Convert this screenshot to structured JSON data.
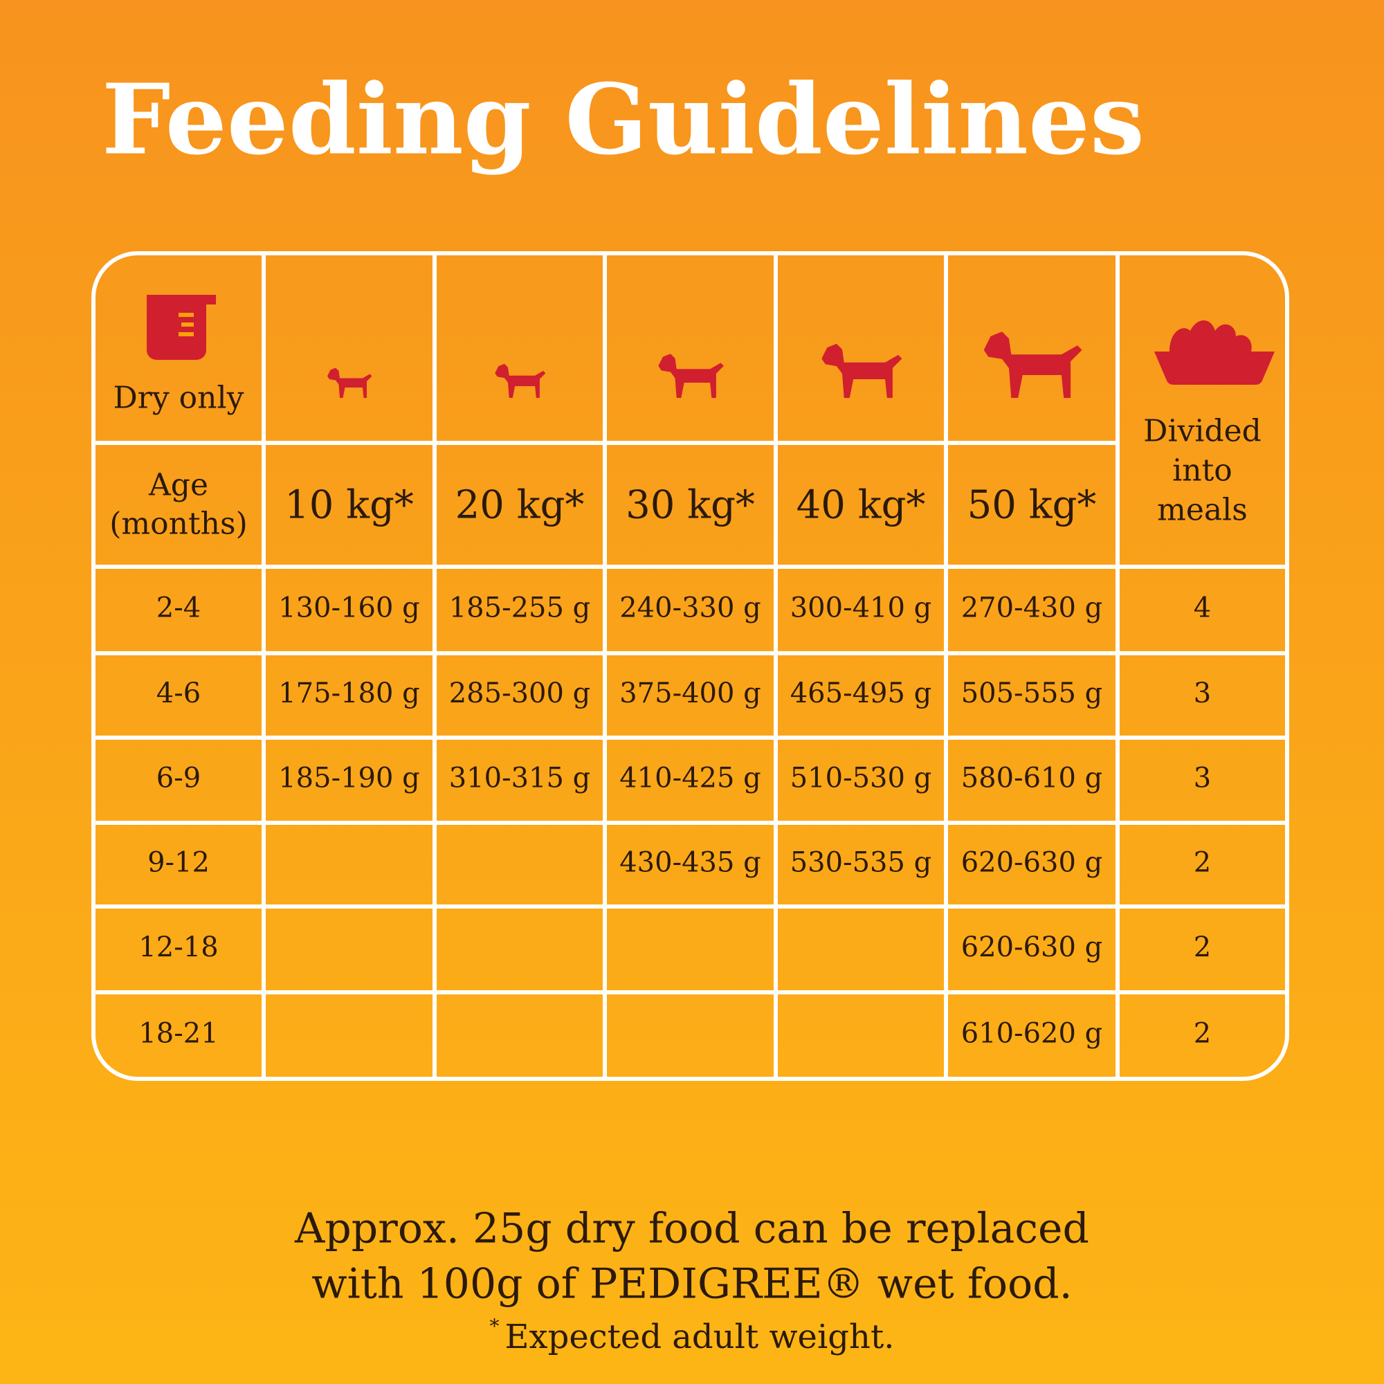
{
  "title": "Feeding Guidelines",
  "table": {
    "icon_label": "Dry only",
    "age_label": [
      "Age",
      "(months)"
    ],
    "weights": [
      "10 kg*",
      "20 kg*",
      "30 kg*",
      "40 kg*",
      "50 kg*"
    ],
    "meals_label": [
      "Divided",
      "into",
      "meals"
    ],
    "rows": [
      [
        "2-4",
        "130-160 g",
        "185-255 g",
        "240-330 g",
        "300-410 g",
        "270-430 g",
        "4"
      ],
      [
        "4-6",
        "175-180 g",
        "285-300 g",
        "375-400 g",
        "465-495 g",
        "505-555 g",
        "3"
      ],
      [
        "6-9",
        "185-190 g",
        "310-315 g",
        "410-425 g",
        "510-530 g",
        "580-610 g",
        "3"
      ],
      [
        "9-12",
        null,
        null,
        "430-435 g",
        "530-535 g",
        "620-630 g",
        "2"
      ],
      [
        "12-18",
        null,
        null,
        null,
        null,
        "620-630 g",
        "2"
      ],
      [
        "18-21",
        null,
        null,
        null,
        null,
        "610-620 g",
        "2"
      ]
    ]
  },
  "note": [
    "Approx. 25g dry food can be replaced",
    "with 100g of PEDIGREE® wet food."
  ],
  "footnote": {
    "mark": "*",
    "text": "Expected adult weight."
  }
}
